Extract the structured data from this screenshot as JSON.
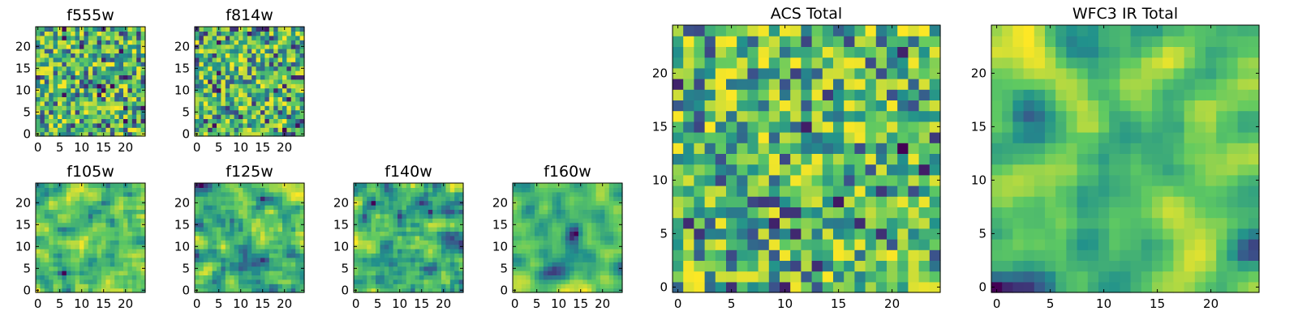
{
  "figure": {
    "panels": [
      {
        "id": "f555w",
        "title": "f555w",
        "grid_size": 25,
        "xticks": [
          0,
          5,
          10,
          15,
          20
        ],
        "yticks": [
          0,
          5,
          10,
          15,
          20
        ]
      },
      {
        "id": "f814w",
        "title": "f814w",
        "grid_size": 25,
        "xticks": [
          0,
          5,
          10,
          15,
          20
        ],
        "yticks": [
          0,
          5,
          10,
          15,
          20
        ]
      },
      {
        "id": "f105w",
        "title": "f105w",
        "grid_size": 25,
        "xticks": [
          0,
          5,
          10,
          15,
          20
        ],
        "yticks": [
          0,
          5,
          10,
          15,
          20
        ]
      },
      {
        "id": "f125w",
        "title": "f125w",
        "grid_size": 25,
        "xticks": [
          0,
          5,
          10,
          15,
          20
        ],
        "yticks": [
          0,
          5,
          10,
          15,
          20
        ]
      },
      {
        "id": "f140w",
        "title": "f140w",
        "grid_size": 25,
        "xticks": [
          0,
          5,
          10,
          15,
          20
        ],
        "yticks": [
          0,
          5,
          10,
          15,
          20
        ]
      },
      {
        "id": "f160w",
        "title": "f160w",
        "grid_size": 25,
        "xticks": [
          0,
          5,
          10,
          15,
          20
        ],
        "yticks": [
          0,
          5,
          10,
          15,
          20
        ]
      },
      {
        "id": "acs-total",
        "title": "ACS Total",
        "grid_size": 25,
        "xticks": [
          0,
          5,
          10,
          15,
          20
        ],
        "yticks": [
          0,
          5,
          10,
          15,
          20
        ]
      },
      {
        "id": "wfc3-ir-total",
        "title": "WFC3 IR Total",
        "grid_size": 25,
        "xticks": [
          0,
          5,
          10,
          15,
          20
        ],
        "yticks": [
          0,
          5,
          10,
          15,
          20
        ]
      }
    ]
  },
  "chart_data": {
    "type": "heatmap",
    "colormap": [
      "#440154",
      "#3b528b",
      "#21918c",
      "#5ec962",
      "#fde725"
    ],
    "panels": [
      "f555w",
      "f814w",
      "f105w",
      "f125w",
      "f140w",
      "f160w",
      "ACS Total",
      "WFC3 IR Total"
    ],
    "x_range": [
      0,
      24
    ],
    "y_range": [
      0,
      24
    ],
    "note": "25x25 pixel intensity maps; pixel values not legible, rendered as pseudo-random viridis texture"
  }
}
